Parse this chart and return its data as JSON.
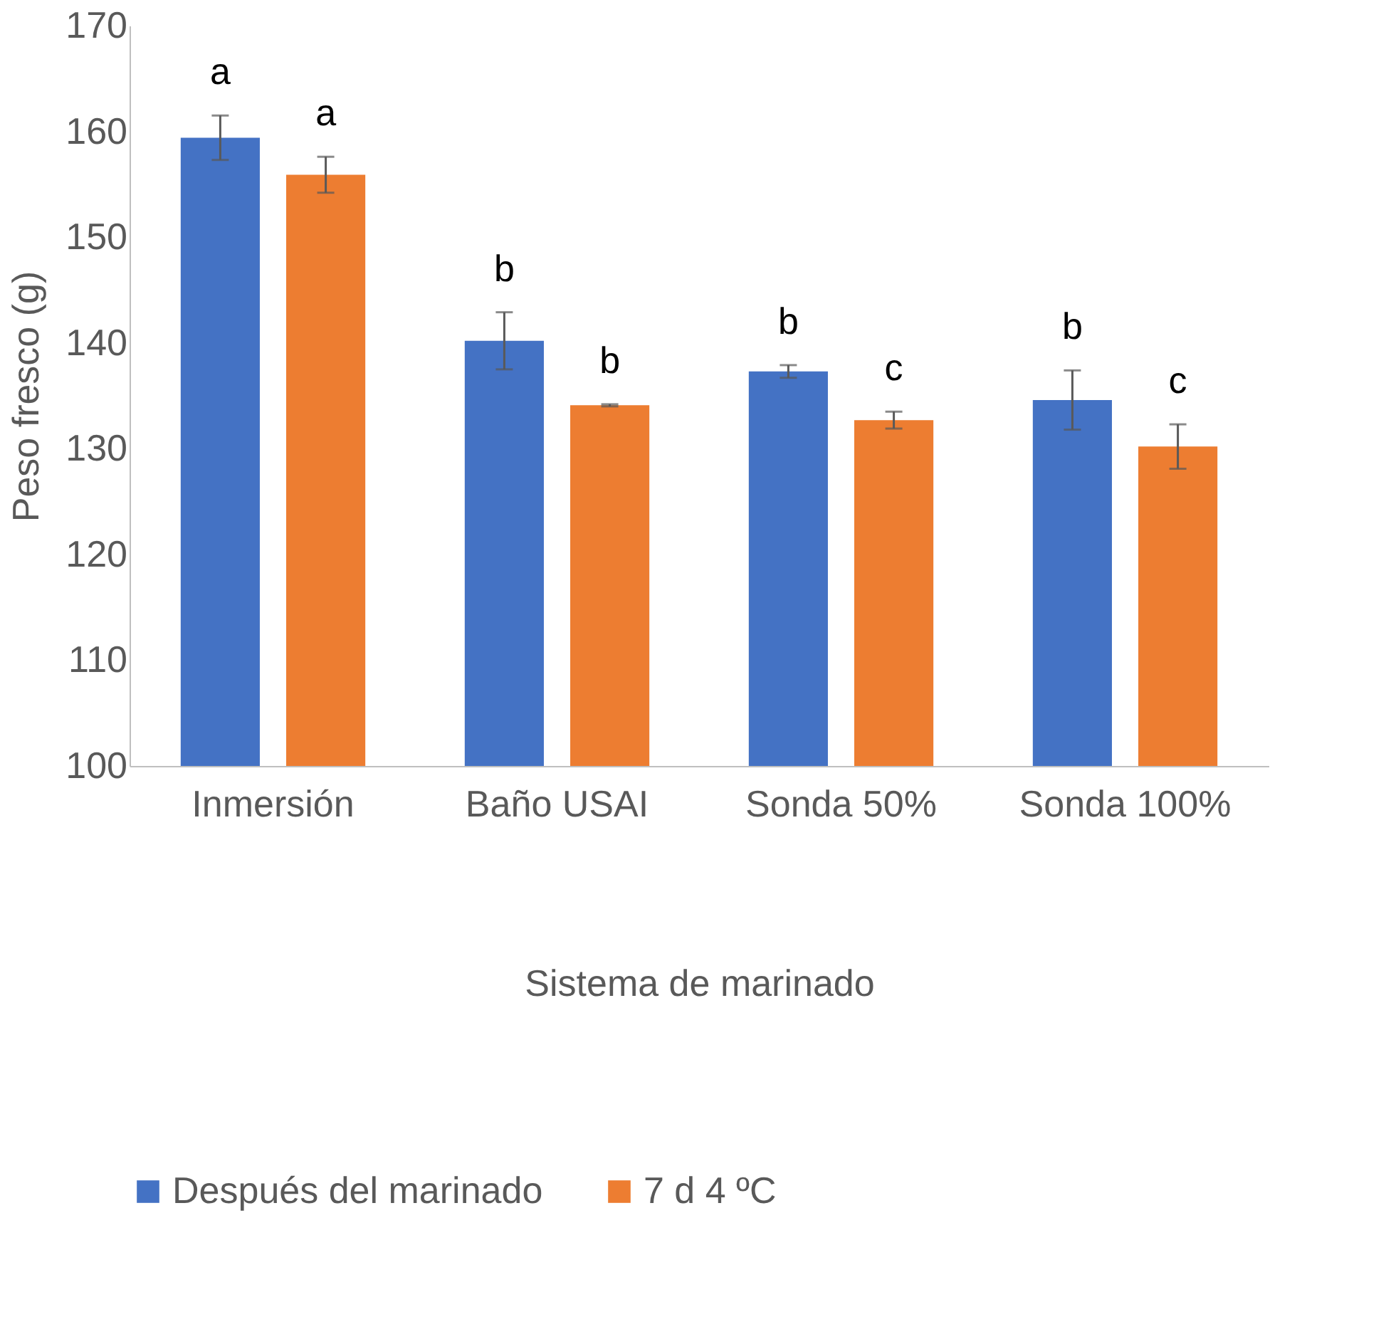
{
  "chart_data": {
    "type": "bar",
    "xlabel": "Sistema de marinado",
    "ylabel": "Peso fresco (g)",
    "categories": [
      "Inmersión",
      "Baño USAI",
      "Sonda 50%",
      "Sonda 100%"
    ],
    "series": [
      {
        "name": "Después del marinado",
        "color": "#4472c4",
        "values": [
          159.4,
          140.2,
          137.3,
          134.6
        ],
        "errors": [
          2.1,
          2.7,
          0.6,
          2.8
        ]
      },
      {
        "name": "7 d 4 ºC",
        "color": "#ed7d31",
        "values": [
          155.9,
          134.1,
          132.7,
          130.2
        ],
        "errors": [
          1.7,
          0.1,
          0.8,
          2.1
        ]
      }
    ],
    "ylim": [
      100,
      170
    ],
    "yticks": [
      100,
      110,
      120,
      130,
      140,
      150,
      160,
      170
    ],
    "grid": false,
    "legend": "bottom",
    "annotations": [
      "a",
      "a",
      "b",
      "b",
      "b",
      "c",
      "b",
      "c"
    ]
  }
}
